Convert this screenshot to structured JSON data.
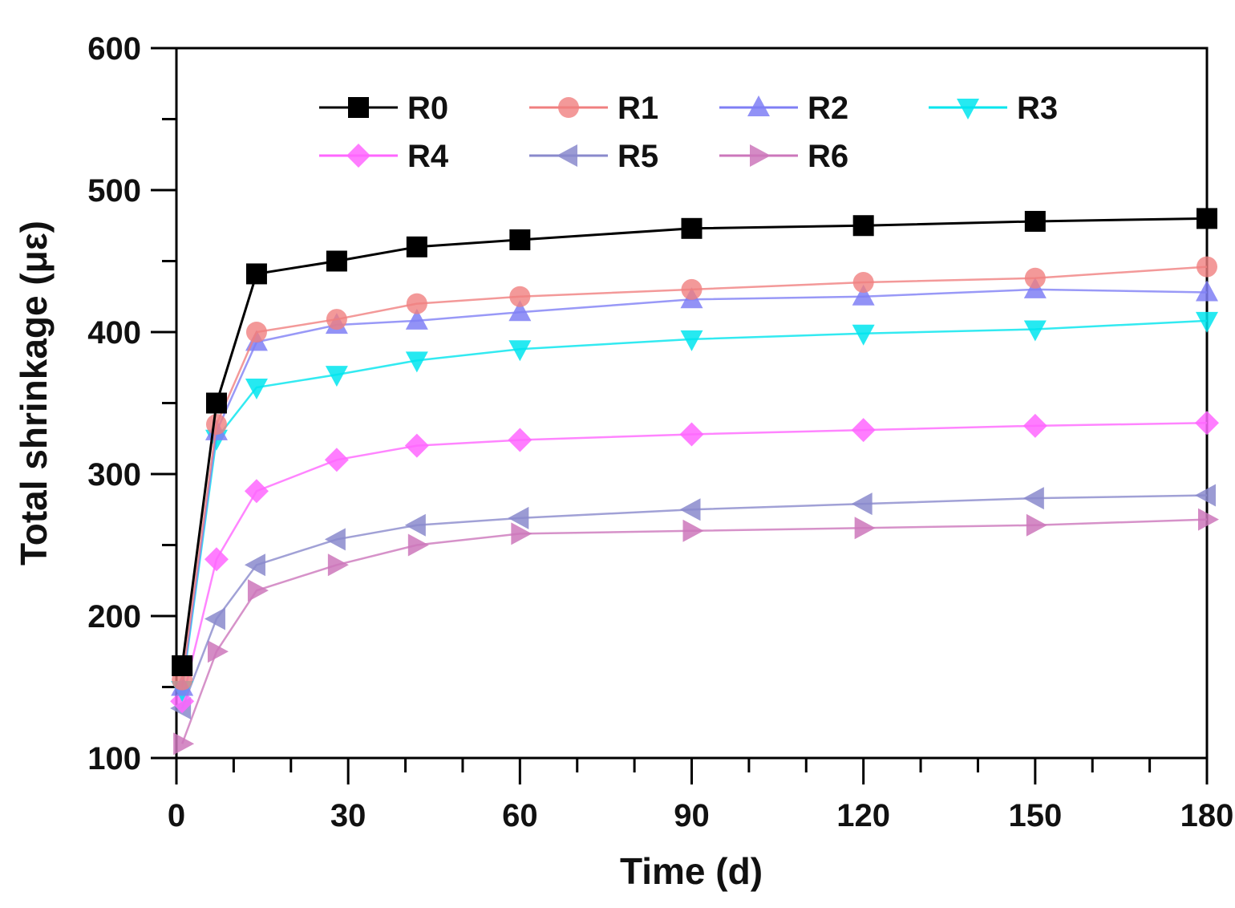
{
  "chart_data": {
    "type": "line",
    "title": "",
    "xlabel": "Time (d)",
    "ylabel": "Total shrinkage (με)",
    "xlim": [
      0,
      180
    ],
    "ylim": [
      100,
      600
    ],
    "xticks": [
      0,
      30,
      60,
      90,
      120,
      150,
      180
    ],
    "yticks": [
      100,
      200,
      300,
      400,
      500,
      600
    ],
    "grid": false,
    "legend": "top",
    "x": [
      1,
      7,
      14,
      28,
      42,
      60,
      90,
      120,
      150,
      180
    ],
    "series": [
      {
        "name": "R0",
        "color": "#000000",
        "marker": "square",
        "values": [
          165,
          350,
          441,
          450,
          460,
          465,
          473,
          475,
          478,
          480
        ]
      },
      {
        "name": "R1",
        "color": "#f08080",
        "marker": "circle",
        "values": [
          155,
          335,
          400,
          409,
          420,
          425,
          430,
          435,
          438,
          446
        ]
      },
      {
        "name": "R2",
        "color": "#7f7ff5",
        "marker": "triangle-up",
        "values": [
          150,
          330,
          393,
          405,
          408,
          414,
          423,
          425,
          430,
          428
        ]
      },
      {
        "name": "R3",
        "color": "#00e5ee",
        "marker": "triangle-down",
        "values": [
          148,
          325,
          361,
          370,
          380,
          388,
          395,
          399,
          402,
          408
        ]
      },
      {
        "name": "R4",
        "color": "#ff66ff",
        "marker": "diamond",
        "values": [
          140,
          240,
          288,
          310,
          320,
          324,
          328,
          331,
          334,
          336
        ]
      },
      {
        "name": "R5",
        "color": "#8a8acc",
        "marker": "triangle-left",
        "values": [
          135,
          198,
          236,
          254,
          264,
          269,
          275,
          279,
          283,
          285
        ]
      },
      {
        "name": "R6",
        "color": "#cc77bb",
        "marker": "triangle-right",
        "values": [
          110,
          175,
          218,
          236,
          250,
          258,
          260,
          262,
          264,
          268
        ]
      }
    ]
  }
}
